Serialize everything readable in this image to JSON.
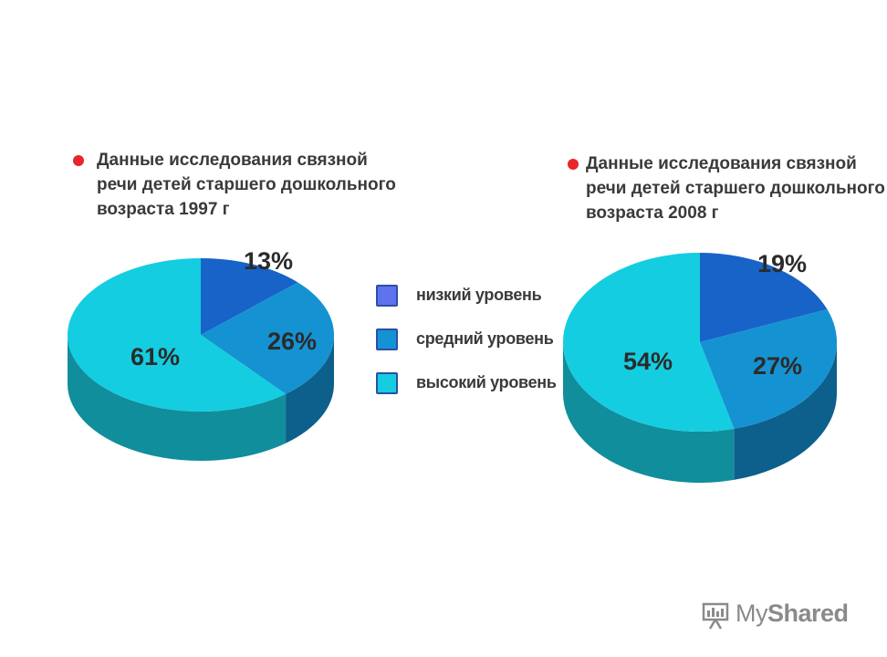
{
  "chart_data": [
    {
      "type": "pie",
      "title": "Данные исследования связной речи детей старшего дошкольного возраста 1997 г",
      "categories": [
        "низкий уровень",
        "средний уровень",
        "высокий уровень"
      ],
      "values": [
        13,
        26,
        61
      ],
      "value_labels": [
        "13%",
        "26%",
        "61%"
      ]
    },
    {
      "type": "pie",
      "title": "Данные исследования связной речи детей старшего дошкольного возраста 2008 г",
      "categories": [
        "низкий уровень",
        "средний уровень",
        "высокий уровень"
      ],
      "values": [
        19,
        27,
        54
      ],
      "value_labels": [
        "19%",
        "27%",
        "54%"
      ]
    }
  ],
  "legend": {
    "placement": "center",
    "items": [
      {
        "label": "низкий уровень",
        "color": "#5f73ee"
      },
      {
        "label": "средний уровень",
        "color": "#1592d2"
      },
      {
        "label": "высокий уровень",
        "color": "#14cde0"
      }
    ]
  },
  "colors": {
    "low_top": "#1763c8",
    "mid_top": "#1592d2",
    "high_top": "#14cde0",
    "low_side": "#0e3f86",
    "mid_side": "#0d5f8c",
    "high_side": "#108e9b",
    "bullet": "#e8262b",
    "label_text": "#2b2b2b"
  },
  "watermark": {
    "text_plain": "My",
    "text_bold": "Shared",
    "icon": "presentation-icon"
  }
}
